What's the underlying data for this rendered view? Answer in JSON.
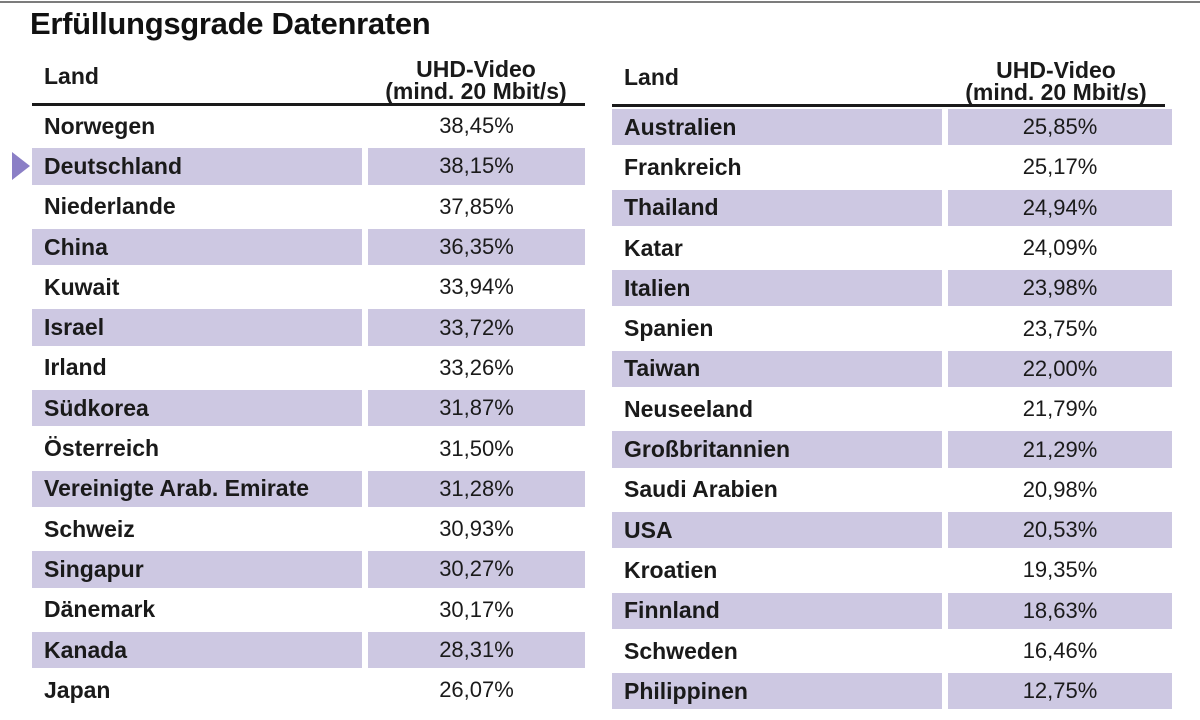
{
  "title": "Erfüllungsgrade Datenraten",
  "header": {
    "land": "Land",
    "value_line1": "UHD-Video",
    "value_line2": "(mind. 20 Mbit/s)"
  },
  "colors": {
    "highlight": "#cdc8e2",
    "marker": "#8b7fc6"
  },
  "left_rows": [
    {
      "land": "Norwegen",
      "value": "38,45%"
    },
    {
      "land": "Deutschland",
      "value": "38,15%"
    },
    {
      "land": "Niederlande",
      "value": "37,85%"
    },
    {
      "land": "China",
      "value": "36,35%"
    },
    {
      "land": "Kuwait",
      "value": "33,94%"
    },
    {
      "land": "Israel",
      "value": "33,72%"
    },
    {
      "land": "Irland",
      "value": "33,26%"
    },
    {
      "land": "Südkorea",
      "value": "31,87%"
    },
    {
      "land": "Österreich",
      "value": "31,50%"
    },
    {
      "land": "Vereinigte Arab. Emirate",
      "value": "31,28%"
    },
    {
      "land": "Schweiz",
      "value": "30,93%"
    },
    {
      "land": "Singapur",
      "value": "30,27%"
    },
    {
      "land": "Dänemark",
      "value": "30,17%"
    },
    {
      "land": "Kanada",
      "value": "28,31%"
    },
    {
      "land": "Japan",
      "value": "26,07%"
    }
  ],
  "right_rows": [
    {
      "land": "Australien",
      "value": "25,85%"
    },
    {
      "land": "Frankreich",
      "value": "25,17%"
    },
    {
      "land": "Thailand",
      "value": "24,94%"
    },
    {
      "land": "Katar",
      "value": "24,09%"
    },
    {
      "land": "Italien",
      "value": "23,98%"
    },
    {
      "land": "Spanien",
      "value": "23,75%"
    },
    {
      "land": "Taiwan",
      "value": "22,00%"
    },
    {
      "land": "Neuseeland",
      "value": "21,79%"
    },
    {
      "land": "Großbritannien",
      "value": "21,29%"
    },
    {
      "land": "Saudi Arabien",
      "value": "20,98%"
    },
    {
      "land": "USA",
      "value": "20,53%"
    },
    {
      "land": "Kroatien",
      "value": "19,35%"
    },
    {
      "land": "Finnland",
      "value": "18,63%"
    },
    {
      "land": "Schweden",
      "value": "16,46%"
    },
    {
      "land": "Philippinen",
      "value": "12,75%"
    }
  ]
}
